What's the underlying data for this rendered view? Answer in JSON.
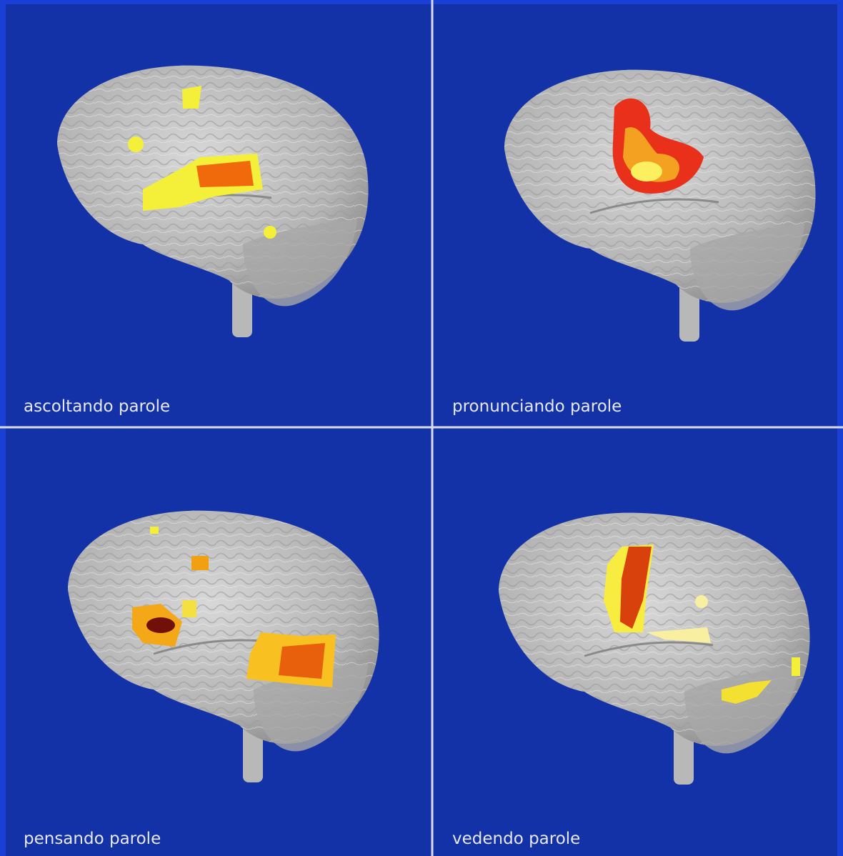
{
  "panels": [
    {
      "caption": "ascoltando parole"
    },
    {
      "caption": "pronunciando parole"
    },
    {
      "caption": "pensando parole"
    },
    {
      "caption": "vedendo parole"
    }
  ]
}
